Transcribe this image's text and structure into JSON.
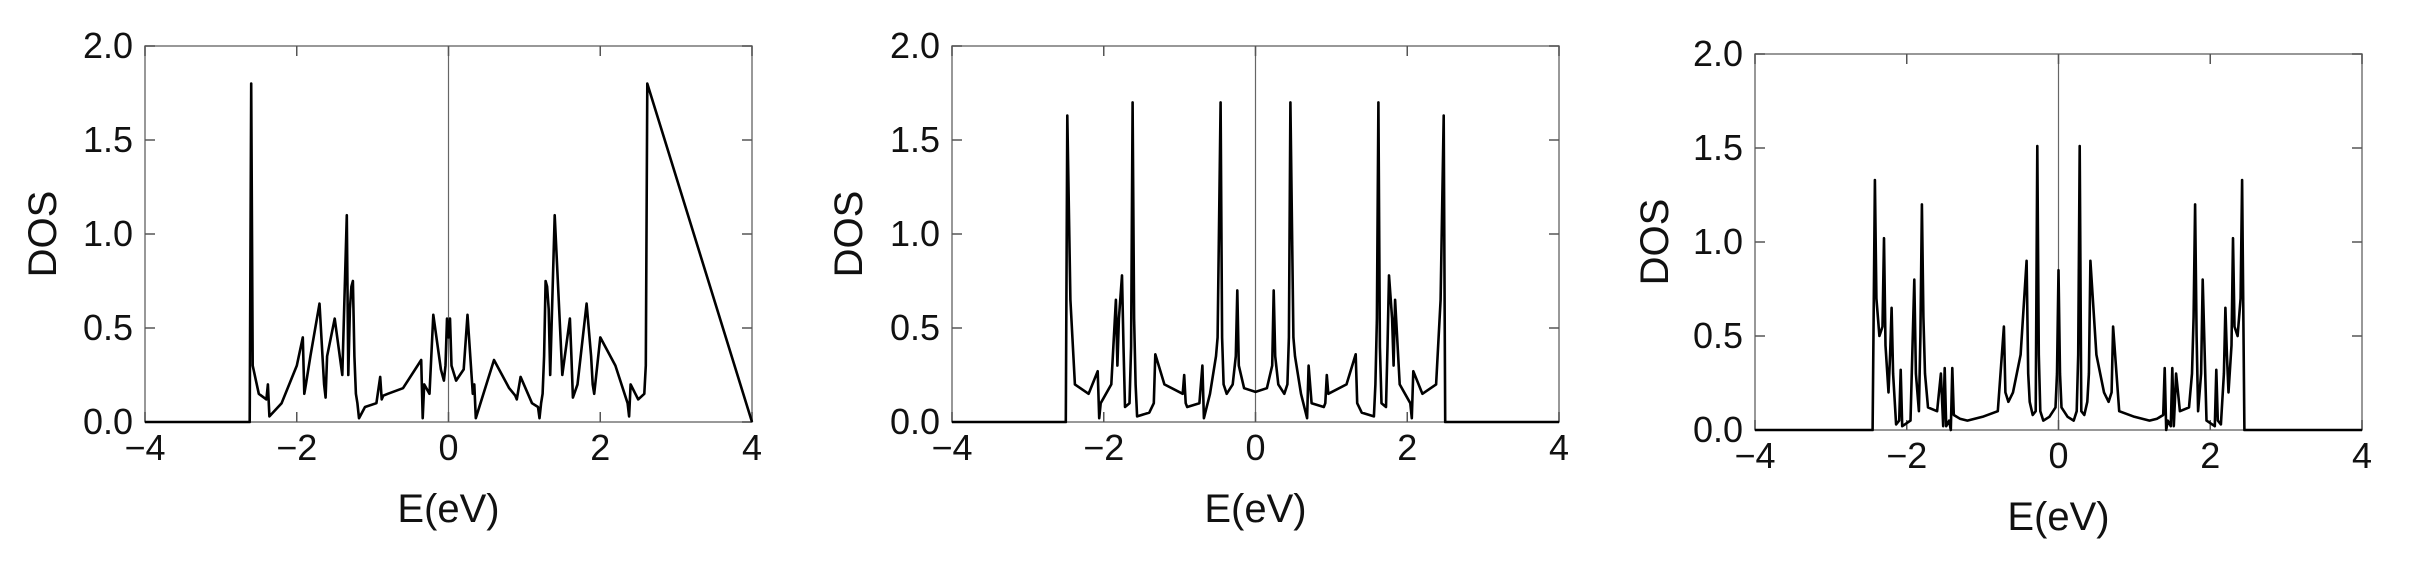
{
  "chart_data": [
    {
      "type": "line",
      "xlabel": "E(eV)",
      "ylabel": "DOS",
      "xlim": [
        -4,
        4
      ],
      "ylim": [
        0,
        2
      ],
      "xticks": [
        -4,
        -2,
        0,
        2,
        4
      ],
      "xtick_labels": [
        "−4",
        "−2",
        "0",
        "2",
        "4"
      ],
      "yticks": [
        0,
        0.5,
        1,
        1.5,
        2
      ],
      "ytick_labels": [
        "0.0",
        "0.5",
        "1.0",
        "1.5",
        "2.0"
      ],
      "zero_line": true,
      "series": [
        {
          "x": [
            -4.0,
            -2.62,
            -2.6,
            -2.58,
            -2.5,
            -2.4,
            -2.38,
            -2.36,
            -2.2,
            -2.0,
            -1.92,
            -1.9,
            -1.88,
            -1.82,
            -1.7,
            -1.64,
            -1.62,
            -1.6,
            -1.5,
            -1.4,
            -1.34,
            -1.32,
            -1.3,
            -1.28,
            -1.26,
            -1.24,
            -1.22,
            -1.2,
            -1.18,
            -1.1,
            -0.95,
            -0.9,
            -0.88,
            -0.86,
            -0.8,
            -0.6,
            -0.36,
            -0.34,
            -0.32,
            -0.25,
            -0.2,
            -0.1,
            -0.06,
            -0.04,
            -0.02,
            0.0,
            0.02,
            0.04,
            0.1,
            0.2,
            0.25,
            0.32,
            0.34,
            0.36,
            0.6,
            0.8,
            0.86,
            0.88,
            0.9,
            0.95,
            1.1,
            1.18,
            1.2,
            1.22,
            1.24,
            1.26,
            1.28,
            1.3,
            1.32,
            1.34,
            1.4,
            1.5,
            1.6,
            1.62,
            1.64,
            1.7,
            1.82,
            1.88,
            1.9,
            1.92,
            2.0,
            2.2,
            2.36,
            2.38,
            2.4,
            2.5,
            2.58,
            2.6,
            2.62,
            4.0
          ],
          "y": [
            0.0,
            0.0,
            1.8,
            0.3,
            0.15,
            0.12,
            0.2,
            0.03,
            0.1,
            0.3,
            0.45,
            0.15,
            0.2,
            0.35,
            0.63,
            0.2,
            0.13,
            0.35,
            0.55,
            0.25,
            1.1,
            0.25,
            0.6,
            0.72,
            0.75,
            0.35,
            0.15,
            0.1,
            0.02,
            0.08,
            0.1,
            0.24,
            0.12,
            0.14,
            0.15,
            0.18,
            0.33,
            0.02,
            0.2,
            0.15,
            0.57,
            0.28,
            0.22,
            0.3,
            0.55,
            0.45,
            0.55,
            0.3,
            0.22,
            0.28,
            0.57,
            0.15,
            0.2,
            0.02,
            0.33,
            0.18,
            0.15,
            0.14,
            0.12,
            0.24,
            0.1,
            0.08,
            0.02,
            0.1,
            0.15,
            0.35,
            0.75,
            0.72,
            0.6,
            0.25,
            1.1,
            0.25,
            0.55,
            0.35,
            0.13,
            0.2,
            0.63,
            0.35,
            0.2,
            0.15,
            0.45,
            0.3,
            0.1,
            0.03,
            0.2,
            0.12,
            0.15,
            0.3,
            1.8,
            0.0
          ]
        }
      ]
    },
    {
      "type": "line",
      "xlabel": "E(eV)",
      "ylabel": "DOS",
      "xlim": [
        -4,
        4
      ],
      "ylim": [
        0,
        2
      ],
      "xticks": [
        -4,
        -2,
        0,
        2,
        4
      ],
      "xtick_labels": [
        "−4",
        "−2",
        "0",
        "2",
        "4"
      ],
      "yticks": [
        0,
        0.5,
        1,
        1.5,
        2
      ],
      "ytick_labels": [
        "0.0",
        "0.5",
        "1.0",
        "1.5",
        "2.0"
      ],
      "zero_line": true,
      "series": [
        {
          "x": [
            -4.0,
            -2.5,
            -2.48,
            -2.44,
            -2.38,
            -2.2,
            -2.08,
            -2.06,
            -2.04,
            -1.9,
            -1.84,
            -1.82,
            -1.8,
            -1.76,
            -1.74,
            -1.72,
            -1.66,
            -1.64,
            -1.62,
            -1.6,
            -1.58,
            -1.56,
            -1.4,
            -1.34,
            -1.32,
            -1.2,
            -0.96,
            -0.94,
            -0.92,
            -0.9,
            -0.74,
            -0.7,
            -0.68,
            -0.6,
            -0.52,
            -0.5,
            -0.46,
            -0.44,
            -0.42,
            -0.38,
            -0.3,
            -0.26,
            -0.24,
            -0.22,
            -0.15,
            0.0,
            0.15,
            0.22,
            0.24,
            0.26,
            0.3,
            0.38,
            0.42,
            0.44,
            0.46,
            0.5,
            0.52,
            0.6,
            0.68,
            0.7,
            0.74,
            0.9,
            0.92,
            0.94,
            0.96,
            1.2,
            1.32,
            1.34,
            1.4,
            1.56,
            1.58,
            1.6,
            1.62,
            1.64,
            1.66,
            1.72,
            1.74,
            1.76,
            1.8,
            1.82,
            1.84,
            1.9,
            2.04,
            2.06,
            2.08,
            2.2,
            2.38,
            2.44,
            2.48,
            2.5,
            4.0
          ],
          "y": [
            0.0,
            0.0,
            1.63,
            0.65,
            0.2,
            0.15,
            0.27,
            0.02,
            0.1,
            0.2,
            0.65,
            0.3,
            0.55,
            0.78,
            0.4,
            0.08,
            0.1,
            0.4,
            1.7,
            0.55,
            0.2,
            0.03,
            0.05,
            0.1,
            0.36,
            0.2,
            0.15,
            0.25,
            0.1,
            0.08,
            0.1,
            0.3,
            0.02,
            0.15,
            0.35,
            0.45,
            1.7,
            0.45,
            0.2,
            0.15,
            0.2,
            0.35,
            0.7,
            0.3,
            0.18,
            0.16,
            0.18,
            0.3,
            0.7,
            0.35,
            0.2,
            0.15,
            0.2,
            0.45,
            1.7,
            0.45,
            0.35,
            0.15,
            0.02,
            0.3,
            0.1,
            0.08,
            0.1,
            0.25,
            0.15,
            0.2,
            0.36,
            0.1,
            0.05,
            0.03,
            0.2,
            0.55,
            1.7,
            0.4,
            0.1,
            0.08,
            0.4,
            0.78,
            0.55,
            0.3,
            0.65,
            0.2,
            0.1,
            0.02,
            0.27,
            0.15,
            0.2,
            0.65,
            1.63,
            0.0,
            0.0
          ]
        }
      ]
    },
    {
      "type": "line",
      "xlabel": "E(eV)",
      "ylabel": "DOS",
      "xlim": [
        -4,
        4
      ],
      "ylim": [
        0,
        2
      ],
      "xticks": [
        -4,
        -2,
        0,
        2,
        4
      ],
      "xtick_labels": [
        "−4",
        "−2",
        "0",
        "2",
        "4"
      ],
      "yticks": [
        0,
        0.5,
        1,
        1.5,
        2
      ],
      "ytick_labels": [
        "0.0",
        "0.5",
        "1.0",
        "1.5",
        "2.0"
      ],
      "zero_line": true,
      "series": [
        {
          "x": [
            -4.0,
            -2.45,
            -2.42,
            -2.4,
            -2.36,
            -2.32,
            -2.3,
            -2.28,
            -2.24,
            -2.22,
            -2.2,
            -2.18,
            -2.14,
            -2.1,
            -2.08,
            -2.06,
            -1.95,
            -1.9,
            -1.88,
            -1.84,
            -1.82,
            -1.8,
            -1.78,
            -1.76,
            -1.72,
            -1.6,
            -1.55,
            -1.52,
            -1.5,
            -1.48,
            -1.44,
            -1.42,
            -1.4,
            -1.38,
            -1.3,
            -1.2,
            -1.0,
            -0.8,
            -0.72,
            -0.7,
            -0.66,
            -0.6,
            -0.5,
            -0.42,
            -0.4,
            -0.38,
            -0.34,
            -0.3,
            -0.28,
            -0.26,
            -0.24,
            -0.2,
            -0.12,
            -0.04,
            -0.02,
            0.0,
            0.02,
            0.04,
            0.12,
            0.2,
            0.24,
            0.26,
            0.28,
            0.3,
            0.34,
            0.38,
            0.4,
            0.42,
            0.5,
            0.6,
            0.66,
            0.7,
            0.72,
            0.8,
            1.0,
            1.2,
            1.3,
            1.38,
            1.4,
            1.42,
            1.44,
            1.48,
            1.5,
            1.52,
            1.55,
            1.6,
            1.72,
            1.76,
            1.78,
            1.8,
            1.82,
            1.84,
            1.88,
            1.9,
            1.95,
            2.06,
            2.08,
            2.1,
            2.14,
            2.18,
            2.2,
            2.22,
            2.24,
            2.28,
            2.3,
            2.32,
            2.36,
            2.4,
            2.42,
            2.45,
            4.0
          ],
          "y": [
            0.0,
            0.0,
            1.33,
            0.7,
            0.5,
            0.55,
            1.02,
            0.45,
            0.2,
            0.4,
            0.65,
            0.3,
            0.03,
            0.05,
            0.32,
            0.02,
            0.05,
            0.8,
            0.3,
            0.1,
            0.5,
            1.2,
            0.6,
            0.3,
            0.12,
            0.1,
            0.3,
            0.02,
            0.33,
            0.02,
            0.05,
            0.0,
            0.33,
            0.08,
            0.06,
            0.05,
            0.07,
            0.1,
            0.55,
            0.2,
            0.15,
            0.2,
            0.4,
            0.9,
            0.3,
            0.15,
            0.08,
            0.1,
            1.51,
            0.4,
            0.1,
            0.05,
            0.07,
            0.12,
            0.3,
            0.85,
            0.3,
            0.12,
            0.07,
            0.05,
            0.1,
            0.4,
            1.51,
            0.1,
            0.08,
            0.15,
            0.3,
            0.9,
            0.4,
            0.2,
            0.15,
            0.2,
            0.55,
            0.1,
            0.07,
            0.05,
            0.06,
            0.08,
            0.33,
            0.0,
            0.05,
            0.02,
            0.33,
            0.02,
            0.3,
            0.1,
            0.12,
            0.3,
            0.6,
            1.2,
            0.5,
            0.1,
            0.3,
            0.8,
            0.05,
            0.02,
            0.32,
            0.05,
            0.03,
            0.3,
            0.65,
            0.4,
            0.2,
            0.45,
            1.02,
            0.55,
            0.5,
            0.7,
            1.33,
            0.0,
            0.0
          ]
        }
      ]
    }
  ]
}
